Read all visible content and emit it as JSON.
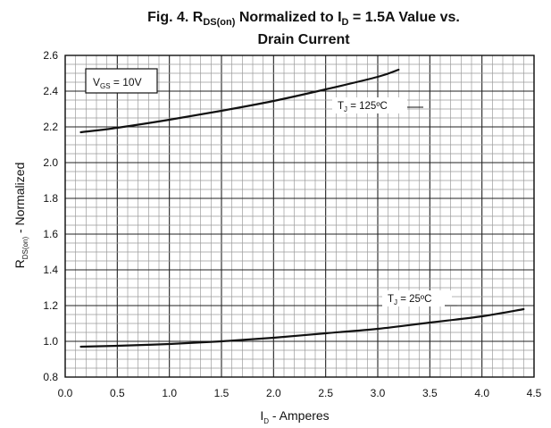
{
  "chart_data": {
    "type": "line",
    "title_main": "Fig. 4. R",
    "title_sub1": "DS(on)",
    "title_mid": " Normalized to I",
    "title_sub2": "D",
    "title_end": " = 1.5A Value vs.",
    "title_line2": "Drain Current",
    "xlabel_main": "I",
    "xlabel_sub": "D",
    "xlabel_end": " - Amperes",
    "ylabel_main": "R",
    "ylabel_sub": "DS(on)",
    "ylabel_end": " - Normalized",
    "xlim": [
      0,
      4.5
    ],
    "ylim": [
      0.8,
      2.6
    ],
    "x_ticks": [
      "0.0",
      "0.5",
      "1.0",
      "1.5",
      "2.0",
      "2.5",
      "3.0",
      "3.5",
      "4.0",
      "4.5"
    ],
    "y_ticks": [
      "0.8",
      "1.0",
      "1.2",
      "1.4",
      "1.6",
      "1.8",
      "2.0",
      "2.2",
      "2.4",
      "2.6"
    ],
    "grid": true,
    "vgs_label": {
      "main": "V",
      "sub": "GS",
      "end": " = 10V"
    },
    "series": [
      {
        "name": "TJ = 125ºC",
        "label_main": "T",
        "label_sub": "J",
        "label_end": " = 125ºC",
        "x": [
          0.15,
          0.5,
          1.0,
          1.5,
          2.0,
          2.5,
          3.0,
          3.2
        ],
        "y": [
          2.17,
          2.195,
          2.24,
          2.29,
          2.345,
          2.41,
          2.48,
          2.52
        ]
      },
      {
        "name": "TJ = 25ºC",
        "label_main": "T",
        "label_sub": "J",
        "label_end": " = 25ºC",
        "x": [
          0.15,
          0.5,
          1.0,
          1.5,
          2.0,
          2.5,
          3.0,
          3.5,
          4.0,
          4.4
        ],
        "y": [
          0.97,
          0.975,
          0.985,
          1.0,
          1.02,
          1.045,
          1.07,
          1.105,
          1.14,
          1.18
        ]
      }
    ]
  }
}
